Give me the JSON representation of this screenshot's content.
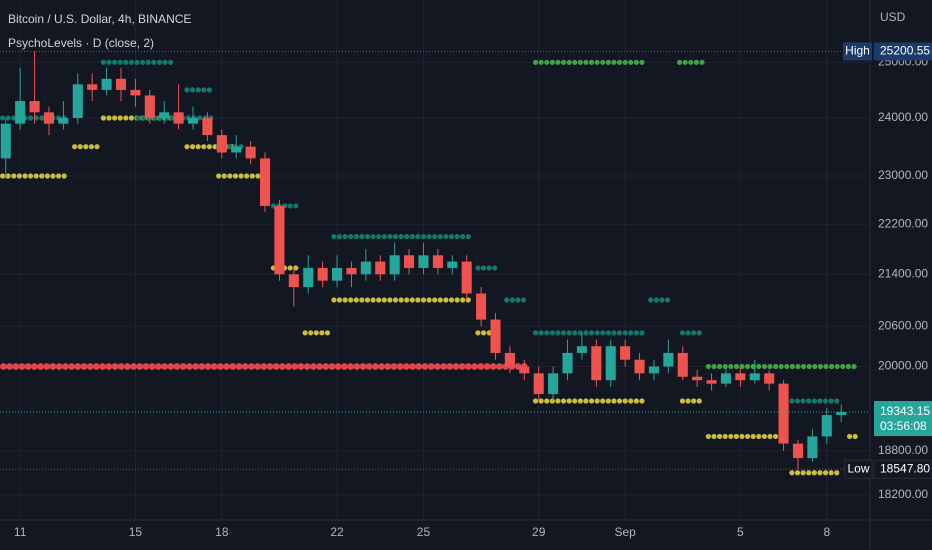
{
  "chart_data": {
    "type": "candlestick",
    "title": "Bitcoin / U.S. Dollar, 4h, BINANCE",
    "subtitle": "PsychoLevels · D (close, 2)",
    "y_axis_label": "USD",
    "log_scale": true,
    "grid": true,
    "up_color": "#26a69a",
    "down_color": "#ef5350",
    "xlim": [
      0.3,
      30.5
    ],
    "xticks": [
      {
        "value": 1,
        "label": "11"
      },
      {
        "value": 5,
        "label": "15"
      },
      {
        "value": 8,
        "label": "18"
      },
      {
        "value": 12,
        "label": "22"
      },
      {
        "value": 15,
        "label": "25"
      },
      {
        "value": 19,
        "label": "29"
      },
      {
        "value": 22,
        "label": "Sep"
      },
      {
        "value": 26,
        "label": "5"
      },
      {
        "value": 29,
        "label": "8"
      }
    ],
    "ylim": [
      17870,
      26170
    ],
    "yticks": [
      {
        "value": 25000,
        "label": "25000.00"
      },
      {
        "value": 24000,
        "label": "24000.00"
      },
      {
        "value": 23000,
        "label": "23000.00"
      },
      {
        "value": 22200,
        "label": "22200.00"
      },
      {
        "value": 21400,
        "label": "21400.00"
      },
      {
        "value": 20600,
        "label": "20600.00"
      },
      {
        "value": 20000,
        "label": "20000.00"
      },
      {
        "value": 18800,
        "label": "18800.00"
      },
      {
        "value": 18200,
        "label": "18200.00"
      }
    ],
    "x": [
      0.5,
      1,
      1.5,
      2,
      2.5,
      3,
      3.5,
      4,
      4.5,
      5,
      5.5,
      6,
      6.5,
      7,
      7.5,
      8,
      8.5,
      9,
      9.5,
      10,
      10.5,
      11,
      11.5,
      12,
      12.5,
      13,
      13.5,
      14,
      14.5,
      15,
      15.5,
      16,
      16.5,
      17,
      17.5,
      18,
      18.5,
      19,
      19.5,
      20,
      20.5,
      21,
      21.5,
      22,
      22.5,
      23,
      23.5,
      24,
      24.5,
      25,
      25.5,
      26,
      26.5,
      27,
      27.5,
      28,
      28.5,
      29,
      29.5
    ],
    "open": [
      23300,
      23900,
      24300,
      24100,
      23900,
      24000,
      24600,
      24500,
      24700,
      24500,
      24400,
      24000,
      24100,
      23900,
      24000,
      23700,
      23400,
      23500,
      23300,
      22500,
      21400,
      21200,
      21500,
      21300,
      21500,
      21400,
      21600,
      21400,
      21700,
      21500,
      21700,
      21500,
      21600,
      21100,
      20700,
      20200,
      20000,
      19900,
      19600,
      19900,
      20200,
      20300,
      19800,
      20300,
      20100,
      19900,
      20000,
      20200,
      19850,
      19800,
      19750,
      19900,
      19800,
      19900,
      19750,
      18900,
      18700,
      19000,
      19300
    ],
    "high": [
      24000,
      24900,
      25200.55,
      24200,
      24300,
      24800,
      24800,
      24900,
      24900,
      24700,
      24500,
      24300,
      24600,
      24200,
      24100,
      23800,
      23700,
      23600,
      23400,
      22600,
      21500,
      21700,
      21600,
      21700,
      21600,
      21800,
      21700,
      21900,
      21800,
      21900,
      21800,
      21700,
      21700,
      21200,
      20800,
      20300,
      20100,
      20000,
      20000,
      20400,
      20500,
      20400,
      20400,
      20400,
      20200,
      20100,
      20400,
      20300,
      19950,
      19900,
      20000,
      20000,
      20100,
      19950,
      19800,
      18950,
      19100,
      19400,
      19450
    ],
    "low": [
      22950,
      23800,
      23900,
      23700,
      23800,
      23900,
      24300,
      24400,
      24300,
      24200,
      23900,
      23900,
      23800,
      23800,
      23600,
      23300,
      23300,
      23200,
      22400,
      21300,
      20900,
      21100,
      21200,
      21200,
      21200,
      21300,
      21300,
      21300,
      21400,
      21400,
      21400,
      21400,
      21000,
      20600,
      20100,
      19900,
      19800,
      19500,
      19500,
      19800,
      20100,
      19700,
      19700,
      20000,
      19800,
      19800,
      19900,
      19800,
      19700,
      19650,
      19700,
      19700,
      19750,
      19650,
      18800,
      18547.8,
      18650,
      18900,
      19200
    ],
    "close": [
      23900,
      24300,
      24100,
      23900,
      24000,
      24600,
      24500,
      24700,
      24500,
      24400,
      24000,
      24100,
      23900,
      24000,
      23700,
      23400,
      23500,
      23300,
      22500,
      21400,
      21200,
      21500,
      21300,
      21500,
      21400,
      21600,
      21400,
      21700,
      21500,
      21700,
      21500,
      21600,
      21100,
      20700,
      20200,
      20000,
      19900,
      19600,
      19900,
      20200,
      20300,
      19800,
      20300,
      20100,
      19900,
      20000,
      20200,
      19850,
      19800,
      19750,
      19900,
      19800,
      19900,
      19750,
      18900,
      18700,
      19000,
      19300,
      19343.15
    ],
    "levels": [
      {
        "value": 20000,
        "start": 0.3,
        "end": 18.8,
        "color": "#e0474c"
      },
      {
        "value": 23000,
        "start": 0.3,
        "end": 2.7,
        "color": "#c9bf3f"
      },
      {
        "value": 24000,
        "start": 0.3,
        "end": 2.7,
        "color": "#15786c"
      },
      {
        "value": 25000,
        "start": 3.8,
        "end": 6.5,
        "color": "#15786c"
      },
      {
        "value": 24000,
        "start": 3.8,
        "end": 6.7,
        "color": "#c9bf3f"
      },
      {
        "value": 23500,
        "start": 2.8,
        "end": 3.8,
        "color": "#c9bf3f"
      },
      {
        "value": 24500,
        "start": 6.7,
        "end": 7.8,
        "color": "#15786c"
      },
      {
        "value": 24000,
        "start": 5.0,
        "end": 7.8,
        "color": "#15786c"
      },
      {
        "value": 23500,
        "start": 6.7,
        "end": 8.6,
        "color": "#c9bf3f"
      },
      {
        "value": 23500,
        "start": 7.8,
        "end": 8.8,
        "color": "#15786c"
      },
      {
        "value": 23000,
        "start": 7.8,
        "end": 9.7,
        "color": "#c9bf3f"
      },
      {
        "value": 22500,
        "start": 9.7,
        "end": 10.7,
        "color": "#15786c"
      },
      {
        "value": 21500,
        "start": 9.7,
        "end": 10.7,
        "color": "#c9bf3f"
      },
      {
        "value": 20500,
        "start": 10.8,
        "end": 11.8,
        "color": "#c9bf3f"
      },
      {
        "value": 22000,
        "start": 11.8,
        "end": 16.8,
        "color": "#15786c"
      },
      {
        "value": 21000,
        "start": 11.8,
        "end": 16.8,
        "color": "#c9bf3f"
      },
      {
        "value": 21500,
        "start": 16.8,
        "end": 17.7,
        "color": "#15786c"
      },
      {
        "value": 20500,
        "start": 16.8,
        "end": 17.7,
        "color": "#c9bf3f"
      },
      {
        "value": 21000,
        "start": 17.8,
        "end": 18.7,
        "color": "#15786c"
      },
      {
        "value": 20500,
        "start": 18.8,
        "end": 22.7,
        "color": "#15786c"
      },
      {
        "value": 19500,
        "start": 18.8,
        "end": 22.7,
        "color": "#c9bf3f"
      },
      {
        "value": 25000,
        "start": 18.8,
        "end": 22.7,
        "color": "#43a047"
      },
      {
        "value": 21000,
        "start": 22.8,
        "end": 23.7,
        "color": "#15786c"
      },
      {
        "value": 25000,
        "start": 23.8,
        "end": 24.8,
        "color": "#43a047"
      },
      {
        "value": 20500,
        "start": 23.9,
        "end": 24.8,
        "color": "#15786c"
      },
      {
        "value": 19500,
        "start": 23.9,
        "end": 24.8,
        "color": "#c9bf3f"
      },
      {
        "value": 20000,
        "start": 24.8,
        "end": 30.1,
        "color": "#43a047"
      },
      {
        "value": 19000,
        "start": 24.8,
        "end": 27.6,
        "color": "#c9bf3f"
      },
      {
        "value": 19500,
        "start": 27.7,
        "end": 29.6,
        "color": "#15786c"
      },
      {
        "value": 18500,
        "start": 27.7,
        "end": 29.6,
        "color": "#c9bf3f"
      },
      {
        "value": 19000,
        "start": 29.7,
        "end": 30.1,
        "color": "#c9bf3f"
      }
    ],
    "price_labels": {
      "high": {
        "label": "High",
        "value": 25200.55
      },
      "last": {
        "value": 19343.15,
        "countdown": "03:56:08"
      },
      "low": {
        "label": "Low",
        "value": 18547.8,
        "value_label": "18547.80"
      }
    }
  }
}
